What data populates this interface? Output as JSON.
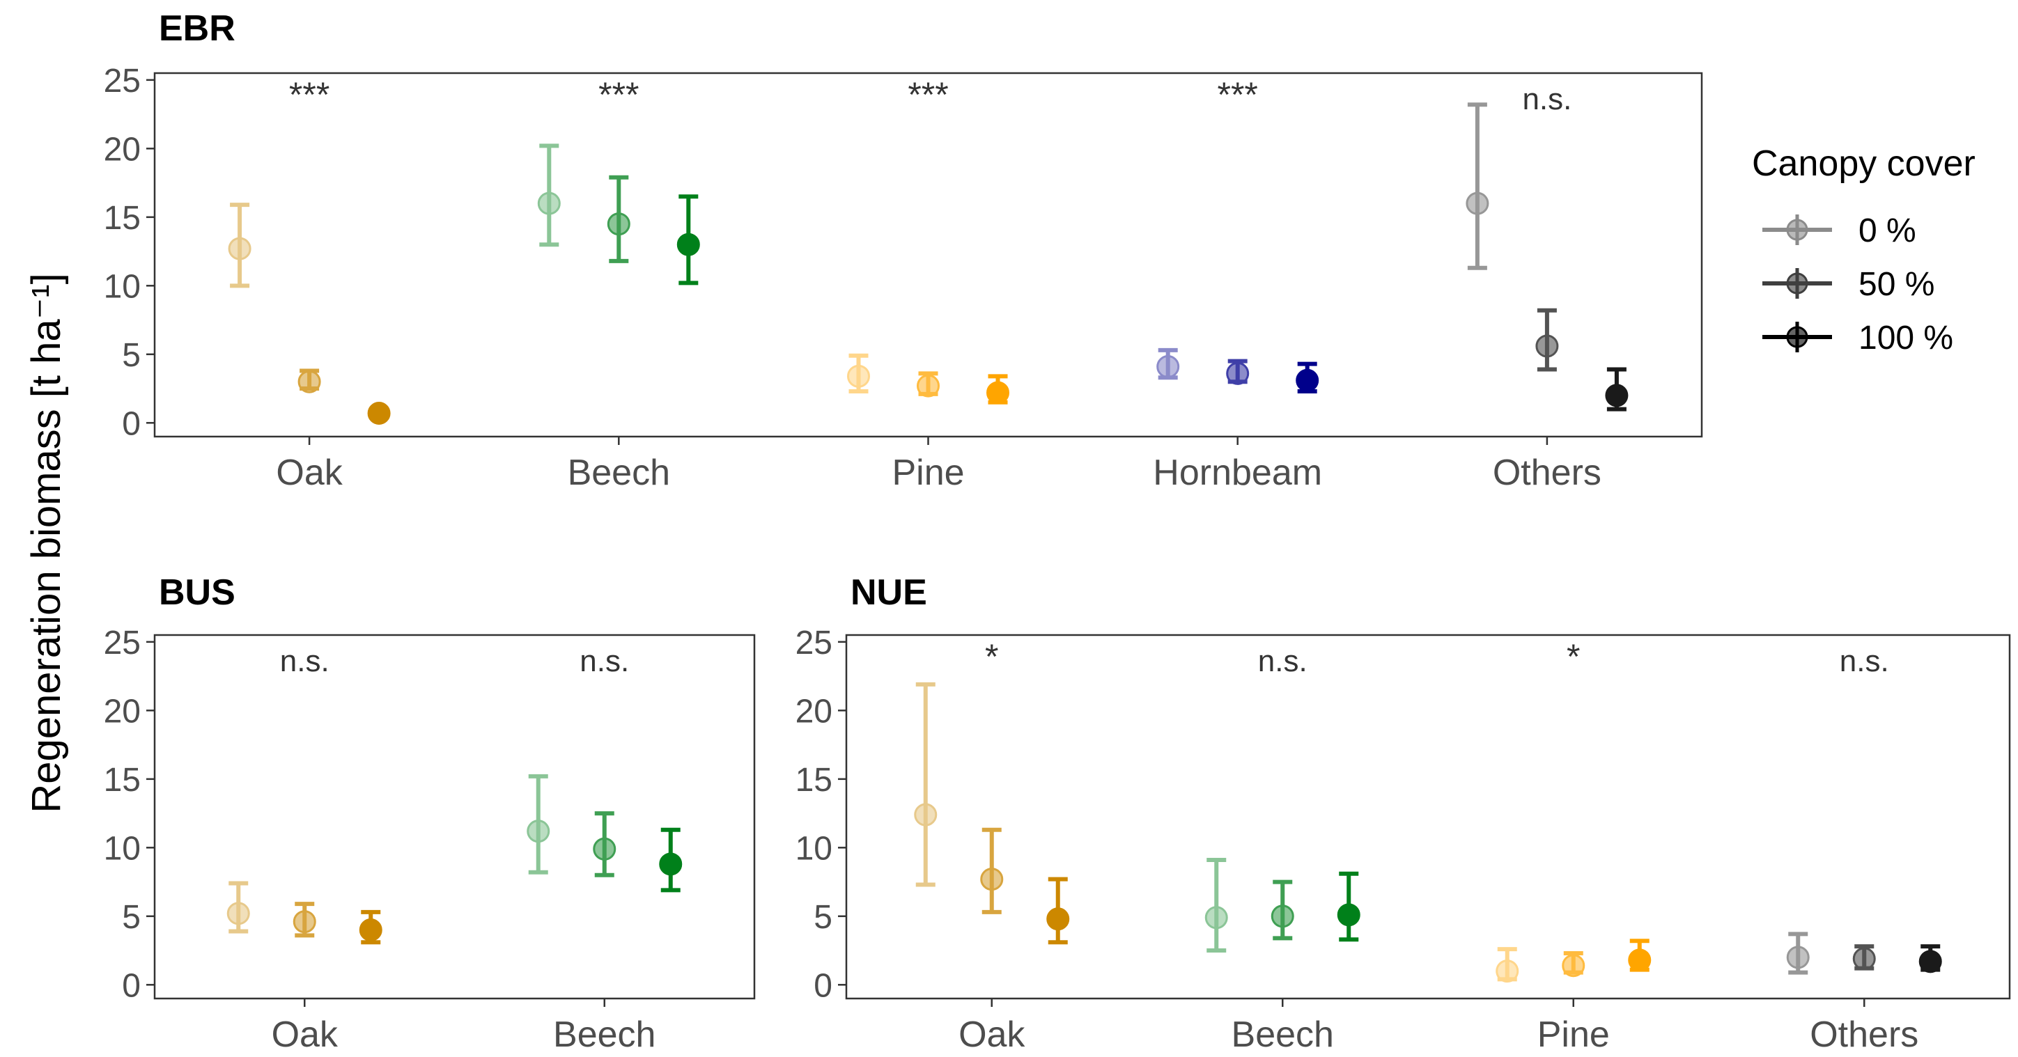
{
  "y_axis_title": "Regeneration biomass [t ha⁻¹]",
  "legend": {
    "title": "Canopy cover",
    "entries": [
      {
        "label": "0 %",
        "opacity": 0.45
      },
      {
        "label": "50 %",
        "opacity": 0.75
      },
      {
        "label": "100 %",
        "opacity": 1.0
      }
    ]
  },
  "colors": {
    "Oak": "#cc8800",
    "Beech": "#00801a",
    "Pine": "#ffa500",
    "Hornbeam": "#00008b",
    "Others": "#1a1a1a"
  },
  "chart_data": [
    {
      "type": "scatter",
      "panel": "EBR",
      "title": "EBR",
      "categories": [
        "Oak",
        "Beech",
        "Pine",
        "Hornbeam",
        "Others"
      ],
      "ylim": [
        -1,
        25.5
      ],
      "yticks": [
        "0",
        "5",
        "10",
        "15",
        "20",
        "25"
      ],
      "significance": [
        "***",
        "***",
        "***",
        "***",
        "n.s."
      ],
      "series": [
        {
          "name": "0 %",
          "values": [
            12.7,
            16.0,
            3.4,
            4.1,
            16.0
          ],
          "lower": [
            10.0,
            13.0,
            2.3,
            3.3,
            11.3
          ],
          "upper": [
            15.9,
            20.2,
            4.9,
            5.3,
            23.2
          ]
        },
        {
          "name": "50 %",
          "values": [
            3.0,
            14.5,
            2.7,
            3.6,
            5.6
          ],
          "lower": [
            2.5,
            11.8,
            2.1,
            3.0,
            3.9
          ],
          "upper": [
            3.8,
            17.9,
            3.6,
            4.5,
            8.2
          ]
        },
        {
          "name": "100 %",
          "values": [
            0.7,
            13.0,
            2.2,
            3.1,
            2.0
          ],
          "lower": [
            0.6,
            10.2,
            1.5,
            2.3,
            1.0
          ],
          "upper": [
            0.9,
            16.5,
            3.4,
            4.3,
            3.9
          ]
        }
      ]
    },
    {
      "type": "scatter",
      "panel": "BUS",
      "title": "BUS",
      "categories": [
        "Oak",
        "Beech"
      ],
      "ylim": [
        -1,
        25.5
      ],
      "yticks": [
        "0",
        "5",
        "10",
        "15",
        "20",
        "25"
      ],
      "significance": [
        "n.s.",
        "n.s."
      ],
      "series": [
        {
          "name": "0 %",
          "values": [
            5.2,
            11.2
          ],
          "lower": [
            3.9,
            8.2
          ],
          "upper": [
            7.4,
            15.2
          ]
        },
        {
          "name": "50 %",
          "values": [
            4.6,
            9.9
          ],
          "lower": [
            3.6,
            8.0
          ],
          "upper": [
            5.9,
            12.5
          ]
        },
        {
          "name": "100 %",
          "values": [
            4.0,
            8.8
          ],
          "lower": [
            3.1,
            6.9
          ],
          "upper": [
            5.3,
            11.3
          ]
        }
      ]
    },
    {
      "type": "scatter",
      "panel": "NUE",
      "title": "NUE",
      "categories": [
        "Oak",
        "Beech",
        "Pine",
        "Others"
      ],
      "ylim": [
        -1,
        25.5
      ],
      "yticks": [
        "0",
        "5",
        "10",
        "15",
        "20",
        "25"
      ],
      "significance": [
        "*",
        "n.s.",
        "*",
        "n.s."
      ],
      "series": [
        {
          "name": "0 %",
          "values": [
            12.4,
            4.9,
            1.0,
            2.0
          ],
          "lower": [
            7.3,
            2.5,
            0.4,
            0.9
          ],
          "upper": [
            21.9,
            9.1,
            2.6,
            3.7
          ]
        },
        {
          "name": "50 %",
          "values": [
            7.7,
            5.0,
            1.4,
            1.9
          ],
          "lower": [
            5.3,
            3.4,
            0.9,
            1.2
          ],
          "upper": [
            11.3,
            7.5,
            2.3,
            2.8
          ]
        },
        {
          "name": "100 %",
          "values": [
            4.8,
            5.1,
            1.8,
            1.7
          ],
          "lower": [
            3.1,
            3.3,
            1.1,
            1.1
          ],
          "upper": [
            7.7,
            8.1,
            3.2,
            2.8
          ]
        }
      ]
    }
  ]
}
